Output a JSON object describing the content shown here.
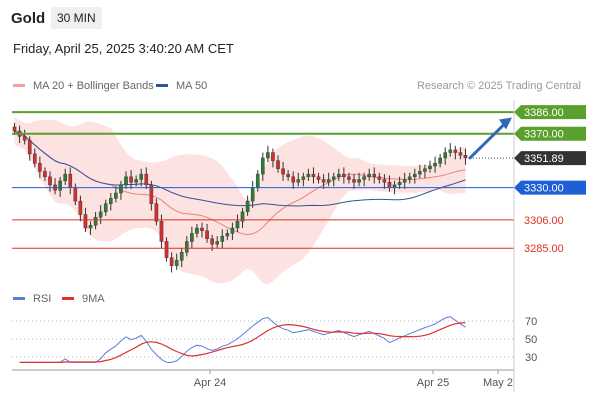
{
  "header": {
    "symbol": "Gold",
    "timeframe": "30 MIN",
    "datetime": "Friday, April 25, 2025 3:40:20 AM CET"
  },
  "legend": {
    "bollinger": {
      "label": "MA 20 + Bollinger Bands",
      "color": "#f4a09a"
    },
    "ma50": {
      "label": "MA 50",
      "color": "#2f5596"
    },
    "credit": "Research © 2025 Trading Central"
  },
  "chart_data": {
    "type": "candlestick",
    "title": "Gold 30 MIN",
    "ylim": [
      3254,
      3395
    ],
    "x_ticks": [
      "Apr 24",
      "Apr 25",
      "May 2"
    ],
    "levels": [
      {
        "value": 3386.0,
        "label": "3386.00",
        "style": "resistance",
        "color": "#5aa02c"
      },
      {
        "value": 3370.0,
        "label": "3370.00",
        "style": "resistance",
        "color": "#5aa02c"
      },
      {
        "value": 3351.89,
        "label": "3351.89",
        "style": "last-price",
        "color": "#333333"
      },
      {
        "value": 3330.0,
        "label": "3330.00",
        "style": "pivot",
        "color": "#1f5fd6"
      },
      {
        "value": 3306.0,
        "label": "3306.00",
        "style": "support",
        "color": "#e03020"
      },
      {
        "value": 3285.0,
        "label": "3285.00",
        "style": "support",
        "color": "#e03020"
      }
    ],
    "arrow": {
      "from": 3352,
      "to": 3382,
      "color": "#2f6bb5"
    },
    "series": {
      "close": [
        3372,
        3368,
        3365,
        3355,
        3348,
        3342,
        3338,
        3332,
        3328,
        3335,
        3340,
        3330,
        3320,
        3310,
        3300,
        3302,
        3308,
        3312,
        3318,
        3322,
        3326,
        3332,
        3338,
        3334,
        3336,
        3340,
        3332,
        3318,
        3305,
        3290,
        3278,
        3272,
        3276,
        3282,
        3290,
        3296,
        3300,
        3298,
        3292,
        3288,
        3290,
        3294,
        3296,
        3300,
        3305,
        3312,
        3320,
        3330,
        3340,
        3352,
        3356,
        3350,
        3344,
        3340,
        3338,
        3334,
        3336,
        3338,
        3340,
        3338,
        3336,
        3334,
        3336,
        3338,
        3340,
        3338,
        3336,
        3334,
        3336,
        3338,
        3340,
        3338,
        3336,
        3334,
        3330,
        3332,
        3334,
        3336,
        3338,
        3340,
        3342,
        3344,
        3346,
        3348,
        3352,
        3356,
        3358,
        3356,
        3354,
        3352
      ]
    },
    "rsi": {
      "legend": {
        "rsi": "RSI",
        "ma": "9MA"
      },
      "levels": [
        70,
        50,
        30
      ],
      "ylim": [
        20,
        80
      ],
      "colors": {
        "rsi": "#5b7fd6",
        "ma": "#e03030"
      }
    }
  }
}
